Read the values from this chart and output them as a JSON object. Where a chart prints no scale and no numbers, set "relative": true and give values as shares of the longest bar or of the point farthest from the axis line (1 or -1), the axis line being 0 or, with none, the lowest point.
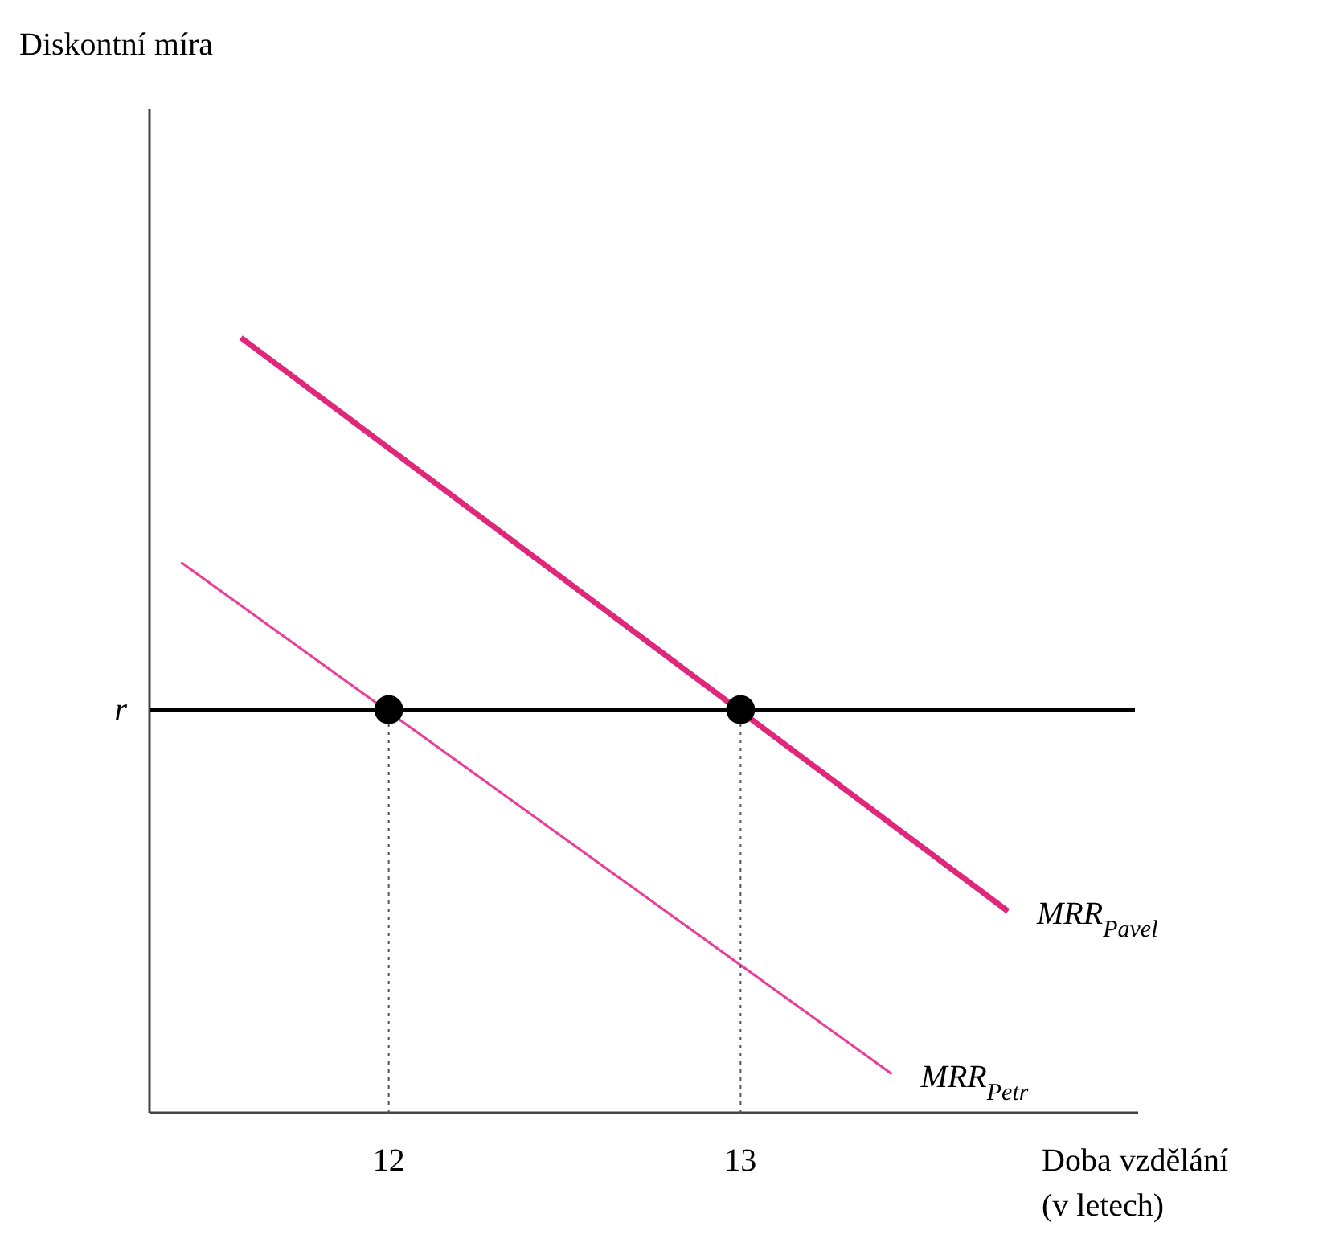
{
  "chart_data": {
    "type": "line",
    "relative": true,
    "annotations": [
      "Diskontní míra"
    ],
    "xlabel": "Doba vzdělání\n(v letech)",
    "xlim": [
      11.32,
      14.13
    ],
    "xticks": [
      12,
      13
    ],
    "legend": false,
    "grid": false,
    "marker": "none",
    "line_style": "solid",
    "series": [
      {
        "name": "MRR$_{Pavel}$",
        "color": "#e0287a",
        "x": [
          11.58,
          13.76
        ],
        "values": [
          1,
          0.26
        ]
      },
      {
        "name": "MRR$_{Petr}$",
        "color": "#ec3d96",
        "x": [
          11.41,
          13.43
        ],
        "values": [
          0.71,
          0.05
        ]
      },
      {
        "type": "line",
        "color": "#555555",
        "line_style": "dotted",
        "x": [
          12,
          12
        ],
        "values": [
          0,
          0.52
        ]
      },
      {
        "type": "line",
        "color": "#555555",
        "line_style": "dotted",
        "x": [
          13,
          13
        ],
        "values": [
          0,
          0.52
        ]
      },
      {
        "type": "scatter",
        "color": "#000000",
        "marker": "circle",
        "x": [
          12,
          13
        ],
        "values": [
          0.52,
          0.52
        ]
      }
    ],
    "ref_lines": [
      {
        "axis": "y",
        "value": 0.52,
        "label": "r",
        "color": "#000000"
      }
    ]
  }
}
